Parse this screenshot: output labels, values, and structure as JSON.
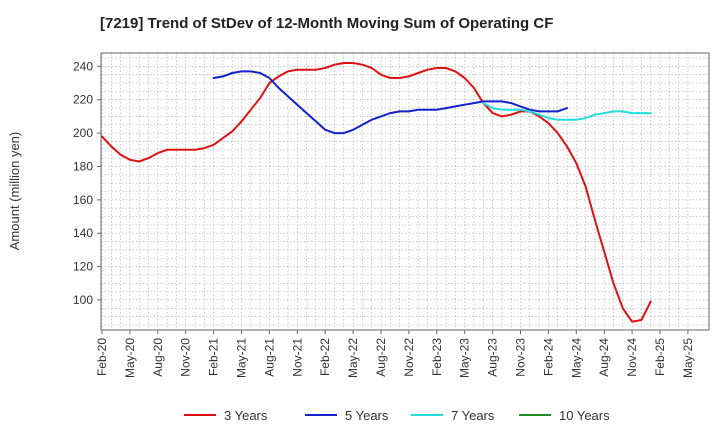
{
  "chart_data": {
    "type": "line",
    "title": "[7219]  Trend of StDev of 12-Month Moving Sum of Operating CF",
    "xlabel": "",
    "ylabel": "Amount (million yen)",
    "x_ticks": [
      "Feb-20",
      "May-20",
      "Aug-20",
      "Nov-20",
      "Feb-21",
      "May-21",
      "Aug-21",
      "Nov-21",
      "Feb-22",
      "May-22",
      "Aug-22",
      "Nov-22",
      "Feb-23",
      "May-23",
      "Aug-23",
      "Nov-23",
      "Feb-24",
      "May-24",
      "Aug-24",
      "Nov-24",
      "Feb-25",
      "May-25"
    ],
    "y_ticks": [
      100,
      120,
      140,
      160,
      180,
      200,
      220,
      240
    ],
    "ylim": [
      82,
      248
    ],
    "grid": true,
    "legend_position": "bottom",
    "series": [
      {
        "name": "3 Years",
        "color": "#dd1111",
        "points": [
          [
            "Feb-20",
            198
          ],
          [
            "Mar-20",
            192
          ],
          [
            "Apr-20",
            187
          ],
          [
            "May-20",
            184
          ],
          [
            "Jun-20",
            183
          ],
          [
            "Jul-20",
            185
          ],
          [
            "Aug-20",
            188
          ],
          [
            "Sep-20",
            190
          ],
          [
            "Oct-20",
            190
          ],
          [
            "Nov-20",
            190
          ],
          [
            "Dec-20",
            190
          ],
          [
            "Jan-21",
            191
          ],
          [
            "Feb-21",
            193
          ],
          [
            "Mar-21",
            197
          ],
          [
            "Apr-21",
            201
          ],
          [
            "May-21",
            207
          ],
          [
            "Jun-21",
            214
          ],
          [
            "Jul-21",
            221
          ],
          [
            "Aug-21",
            230
          ],
          [
            "Sep-21",
            234
          ],
          [
            "Oct-21",
            237
          ],
          [
            "Nov-21",
            238
          ],
          [
            "Dec-21",
            238
          ],
          [
            "Jan-22",
            238
          ],
          [
            "Feb-22",
            239
          ],
          [
            "Mar-22",
            241
          ],
          [
            "Apr-22",
            242
          ],
          [
            "May-22",
            242
          ],
          [
            "Jun-22",
            241
          ],
          [
            "Jul-22",
            239
          ],
          [
            "Aug-22",
            235
          ],
          [
            "Sep-22",
            233
          ],
          [
            "Oct-22",
            233
          ],
          [
            "Nov-22",
            234
          ],
          [
            "Dec-22",
            236
          ],
          [
            "Jan-23",
            238
          ],
          [
            "Feb-23",
            239
          ],
          [
            "Mar-23",
            239
          ],
          [
            "Apr-23",
            237
          ],
          [
            "May-23",
            233
          ],
          [
            "Jun-23",
            227
          ],
          [
            "Jul-23",
            218
          ],
          [
            "Aug-23",
            212
          ],
          [
            "Sep-23",
            210
          ],
          [
            "Oct-23",
            211
          ],
          [
            "Nov-23",
            213
          ],
          [
            "Dec-23",
            213
          ],
          [
            "Jan-24",
            210
          ],
          [
            "Feb-24",
            206
          ],
          [
            "Mar-24",
            200
          ],
          [
            "Apr-24",
            192
          ],
          [
            "May-24",
            182
          ],
          [
            "Jun-24",
            168
          ],
          [
            "Jul-24",
            148
          ],
          [
            "Aug-24",
            129
          ],
          [
            "Sep-24",
            110
          ],
          [
            "Oct-24",
            95
          ],
          [
            "Nov-24",
            87
          ],
          [
            "Dec-24",
            88
          ],
          [
            "Jan-25",
            99
          ]
        ]
      },
      {
        "name": "5 Years",
        "color": "#1122cc",
        "points": [
          [
            "Feb-21",
            233
          ],
          [
            "Mar-21",
            234
          ],
          [
            "Apr-21",
            236
          ],
          [
            "May-21",
            237
          ],
          [
            "Jun-21",
            237
          ],
          [
            "Jul-21",
            236
          ],
          [
            "Aug-21",
            233
          ],
          [
            "Sep-21",
            227
          ],
          [
            "Oct-21",
            222
          ],
          [
            "Nov-21",
            217
          ],
          [
            "Dec-21",
            212
          ],
          [
            "Jan-22",
            207
          ],
          [
            "Feb-22",
            202
          ],
          [
            "Mar-22",
            200
          ],
          [
            "Apr-22",
            200
          ],
          [
            "May-22",
            202
          ],
          [
            "Jun-22",
            205
          ],
          [
            "Jul-22",
            208
          ],
          [
            "Aug-22",
            210
          ],
          [
            "Sep-22",
            212
          ],
          [
            "Oct-22",
            213
          ],
          [
            "Nov-22",
            213
          ],
          [
            "Dec-22",
            214
          ],
          [
            "Jan-23",
            214
          ],
          [
            "Feb-23",
            214
          ],
          [
            "Mar-23",
            215
          ],
          [
            "Apr-23",
            216
          ],
          [
            "May-23",
            217
          ],
          [
            "Jun-23",
            218
          ],
          [
            "Jul-23",
            219
          ],
          [
            "Aug-23",
            219
          ],
          [
            "Sep-23",
            219
          ],
          [
            "Oct-23",
            218
          ],
          [
            "Nov-23",
            216
          ],
          [
            "Dec-23",
            214
          ],
          [
            "Jan-24",
            213
          ],
          [
            "Feb-24",
            213
          ],
          [
            "Mar-24",
            213
          ],
          [
            "Apr-24",
            215
          ]
        ]
      },
      {
        "name": "7 Years",
        "color": "#22dddd",
        "points": [
          [
            "Jul-23",
            218
          ],
          [
            "Aug-23",
            215
          ],
          [
            "Sep-23",
            214
          ],
          [
            "Oct-23",
            214
          ],
          [
            "Nov-23",
            214
          ],
          [
            "Dec-23",
            213
          ],
          [
            "Jan-24",
            211
          ],
          [
            "Feb-24",
            209
          ],
          [
            "Mar-24",
            208
          ],
          [
            "Apr-24",
            208
          ],
          [
            "May-24",
            208
          ],
          [
            "Jun-24",
            209
          ],
          [
            "Jul-24",
            211
          ],
          [
            "Aug-24",
            212
          ],
          [
            "Sep-24",
            213
          ],
          [
            "Oct-24",
            213
          ],
          [
            "Nov-24",
            212
          ],
          [
            "Dec-24",
            212
          ],
          [
            "Jan-25",
            212
          ]
        ]
      },
      {
        "name": "10 Years",
        "color": "#228822",
        "points": []
      }
    ]
  }
}
